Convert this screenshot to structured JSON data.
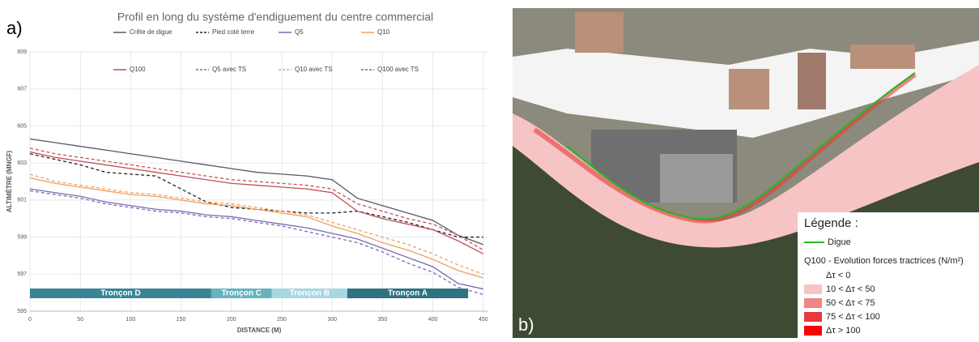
{
  "chart_data": {
    "type": "line",
    "title": "Profil en long du système d'endiguement du centre commercial",
    "xlabel": "DISTANCE (M)",
    "ylabel": "ALTIMÈTRE (MNGF)",
    "x": [
      0,
      25,
      50,
      75,
      100,
      125,
      150,
      175,
      200,
      225,
      250,
      275,
      300,
      325,
      350,
      375,
      400,
      425,
      450
    ],
    "series": [
      {
        "name": "Crête de digue",
        "color": "#555a66",
        "dash": false,
        "values": [
          604.3,
          604.1,
          603.9,
          603.7,
          603.5,
          603.3,
          603.1,
          602.9,
          602.7,
          602.5,
          602.4,
          602.3,
          602.1,
          601.1,
          600.7,
          600.3,
          599.9,
          599.1,
          598.6
        ]
      },
      {
        "name": "Pied coté terre",
        "color": "#222222",
        "dash": true,
        "values": [
          603.5,
          603.2,
          602.9,
          602.5,
          602.4,
          602.3,
          601.6,
          600.9,
          600.6,
          600.5,
          600.4,
          600.3,
          600.3,
          600.4,
          600.1,
          599.8,
          599.4,
          599.0,
          599.0
        ]
      },
      {
        "name": "Q5",
        "color": "#7b6bb0",
        "dash": false,
        "values": [
          601.6,
          601.4,
          601.2,
          600.9,
          600.7,
          600.5,
          600.4,
          600.2,
          600.1,
          599.9,
          599.7,
          599.5,
          599.2,
          598.9,
          598.4,
          597.9,
          597.4,
          596.5,
          596.2
        ]
      },
      {
        "name": "Q10",
        "color": "#f0a060",
        "dash": false,
        "values": [
          602.2,
          601.9,
          601.7,
          601.5,
          601.3,
          601.2,
          601.0,
          600.8,
          600.7,
          600.5,
          600.3,
          600.1,
          599.6,
          599.2,
          598.7,
          598.3,
          597.8,
          597.2,
          596.8
        ]
      },
      {
        "name": "Q100",
        "color": "#c0505a",
        "dash": false,
        "values": [
          603.6,
          603.3,
          603.1,
          602.9,
          602.7,
          602.5,
          602.3,
          602.1,
          601.9,
          601.8,
          601.7,
          601.6,
          601.4,
          600.4,
          600.0,
          599.7,
          599.4,
          598.8,
          598.1
        ]
      },
      {
        "name": "Q5 avec TS",
        "color": "#7b6bb0",
        "dash": true,
        "values": [
          601.5,
          601.3,
          601.1,
          600.8,
          600.6,
          600.4,
          600.3,
          600.1,
          600.0,
          599.8,
          599.6,
          599.3,
          599.0,
          598.7,
          598.2,
          597.6,
          597.1,
          596.3,
          595.9
        ]
      },
      {
        "name": "Q10 avec TS",
        "color": "#f0a060",
        "dash": true,
        "values": [
          602.4,
          602.0,
          601.8,
          601.6,
          601.4,
          601.3,
          601.1,
          600.9,
          600.8,
          600.6,
          600.4,
          600.2,
          599.8,
          599.4,
          599.0,
          598.6,
          598.1,
          597.5,
          597.0
        ]
      },
      {
        "name": "Q100 avec TS",
        "color": "#c0505a",
        "dash": true,
        "values": [
          603.8,
          603.5,
          603.3,
          603.1,
          602.9,
          602.7,
          602.5,
          602.3,
          602.1,
          602.0,
          601.9,
          601.8,
          601.6,
          600.8,
          600.4,
          600.0,
          599.7,
          599.1,
          598.3
        ]
      }
    ],
    "sections": [
      {
        "name": "Tronçon D",
        "start": 0,
        "end": 180,
        "color": "#3a8595"
      },
      {
        "name": "Tronçon C",
        "start": 180,
        "end": 240,
        "color": "#66b3c0"
      },
      {
        "name": "Tronçon B",
        "start": 240,
        "end": 315,
        "color": "#a6d8e0"
      },
      {
        "name": "Tronçon A",
        "start": 315,
        "end": 435,
        "color": "#2f7282"
      }
    ],
    "xlim": [
      0,
      455
    ],
    "xticks": [
      0,
      50,
      100,
      150,
      200,
      250,
      300,
      350,
      400,
      450
    ],
    "ylim": [
      595,
      609
    ],
    "yticks": [
      595,
      597,
      599,
      601,
      603,
      605,
      607,
      609
    ],
    "grid": true
  },
  "panels": {
    "a": "a)",
    "b": "b)"
  },
  "map_legend": {
    "title": "Légende :",
    "dike": "Digue",
    "dike_color": "#22bb22",
    "subtitle": "Q100 - Evolution forces tractrices (N/m²)",
    "classes": [
      {
        "label": "Δτ < 0",
        "color": "#ffffff"
      },
      {
        "label": "10 < Δτ < 50",
        "color": "#f6c4c4"
      },
      {
        "label": "50 < Δτ < 75",
        "color": "#ef8585"
      },
      {
        "label": "75 < Δτ < 100",
        "color": "#e83a3a"
      },
      {
        "label": "Δτ > 100",
        "color": "#ff0000"
      }
    ]
  }
}
